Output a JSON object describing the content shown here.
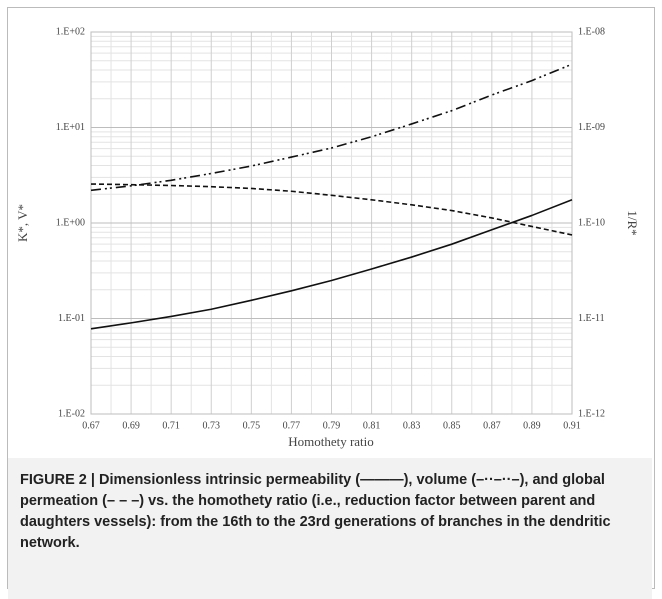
{
  "chart_data": {
    "type": "line",
    "x_label": "Homothety ratio",
    "y_label": "K*, V*",
    "y2_label": "1/R*",
    "x": [
      0.67,
      0.69,
      0.71,
      0.73,
      0.75,
      0.77,
      0.79,
      0.81,
      0.83,
      0.85,
      0.87,
      0.89,
      0.91
    ],
    "series": [
      {
        "color": "#111111",
        "dash": "none",
        "axis": "y",
        "values": [
          0.078,
          0.09,
          0.105,
          0.125,
          0.155,
          0.195,
          0.25,
          0.33,
          0.44,
          0.6,
          0.85,
          1.2,
          1.75
        ]
      },
      {
        "color": "#111111",
        "dash": "10 4 2 3 2 4",
        "axis": "y",
        "values": [
          2.2,
          2.45,
          2.8,
          3.3,
          3.95,
          4.9,
          6.1,
          8.0,
          10.9,
          15,
          21.9,
          31,
          46
        ]
      },
      {
        "color": "#111111",
        "dash": "5 3",
        "axis": "y2",
        "values": [
          2.56e-10,
          2.52e-10,
          2.47e-10,
          2.4e-10,
          2.3e-10,
          2.15e-10,
          1.95e-10,
          1.75e-10,
          1.55e-10,
          1.35e-10,
          1.13e-10,
          9.2e-11,
          7.5e-11
        ]
      }
    ],
    "log_y": true,
    "grid": true,
    "xlim": [
      0.67,
      0.91
    ],
    "xticks": [
      0.67,
      0.69,
      0.71,
      0.73,
      0.75,
      0.77,
      0.79,
      0.81,
      0.83,
      0.85,
      0.87,
      0.89,
      0.91
    ],
    "ylim": [
      0.01,
      100
    ],
    "yticks": [
      {
        "value": 0.01,
        "label": "1.E-02"
      },
      {
        "value": 0.1,
        "label": "1.E-01"
      },
      {
        "value": 1,
        "label": "1.E+00"
      },
      {
        "value": 10,
        "label": "1.E+01"
      },
      {
        "value": 100,
        "label": "1.E+02"
      }
    ],
    "y2lim": [
      1e-12,
      1e-08
    ],
    "y2ticks": [
      {
        "value": 1e-12,
        "label": "1.E-12"
      },
      {
        "value": 1e-11,
        "label": "1.E-11"
      },
      {
        "value": 1e-10,
        "label": "1.E-10"
      },
      {
        "value": 1e-09,
        "label": "1.E-09"
      },
      {
        "value": 1e-08,
        "label": "1.E-08"
      }
    ]
  },
  "caption": "FIGURE 2 | Dimensionless intrinsic permeability (———), volume (–··–··–), and global permeation (– – –) vs. the homothety ratio (i.e., reduction factor between parent and daughters vessels): from the 16th to the 23rd generations of branches in the dendritic network."
}
